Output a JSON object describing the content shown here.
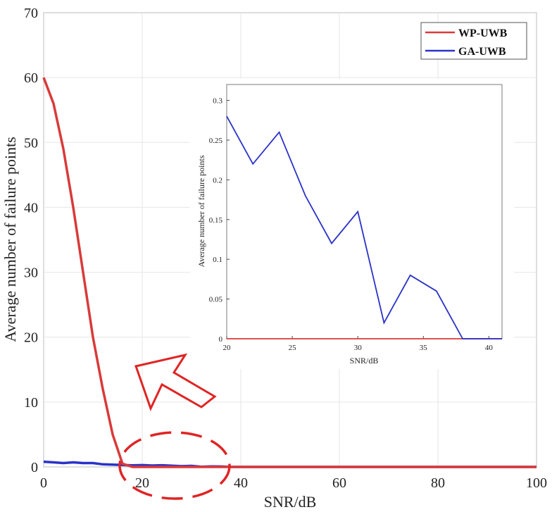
{
  "chart_data": [
    {
      "type": "line",
      "xlabel": "SNR/dB",
      "ylabel": "Average number of failure points",
      "xlim": [
        0,
        100
      ],
      "ylim": [
        0,
        70
      ],
      "xticks": [
        "0",
        "20",
        "40",
        "60",
        "80",
        "100"
      ],
      "yticks": [
        "0",
        "10",
        "20",
        "30",
        "40",
        "50",
        "60",
        "70"
      ],
      "grid": true,
      "legend_position": "top-right",
      "series": [
        {
          "name": "WP-UWB",
          "color": "#d93a3a",
          "x": [
            0,
            2,
            4,
            6,
            8,
            10,
            12,
            14,
            16,
            18,
            20,
            22,
            24,
            26,
            28,
            30,
            32,
            34,
            36,
            38,
            40,
            50,
            60,
            70,
            80,
            90,
            100
          ],
          "y": [
            60,
            56,
            49,
            40,
            30,
            20,
            12,
            5,
            0.5,
            0,
            0,
            0,
            0,
            0,
            0,
            0,
            0,
            0,
            0,
            0,
            0,
            0,
            0,
            0,
            0,
            0,
            0
          ]
        },
        {
          "name": "GA-UWB",
          "color": "#2a32c8",
          "x": [
            0,
            2,
            4,
            6,
            8,
            10,
            12,
            14,
            16,
            18,
            20,
            22,
            24,
            26,
            28,
            30,
            32,
            34,
            36,
            38,
            40,
            50,
            60,
            70,
            80,
            90,
            100
          ],
          "y": [
            0.8,
            0.7,
            0.6,
            0.7,
            0.6,
            0.6,
            0.4,
            0.35,
            0.3,
            0.25,
            0.28,
            0.22,
            0.26,
            0.18,
            0.12,
            0.16,
            0.02,
            0.08,
            0.06,
            0,
            0,
            0,
            0,
            0,
            0,
            0,
            0
          ]
        }
      ]
    },
    {
      "type": "line",
      "xlabel": "SNR/dB",
      "ylabel": "Average number of failure points",
      "xlim": [
        20,
        41
      ],
      "ylim": [
        0,
        0.32
      ],
      "xticks": [
        "20",
        "25",
        "30",
        "35",
        "40"
      ],
      "yticks": [
        "0",
        "0.05",
        "0.1",
        "0.15",
        "0.2",
        "0.25",
        "0.3"
      ],
      "grid": false,
      "series": [
        {
          "name": "WP-UWB",
          "color": "#d93a3a",
          "x": [
            20,
            41
          ],
          "y": [
            0,
            0
          ]
        },
        {
          "name": "GA-UWB",
          "color": "#2a32c8",
          "x": [
            20,
            22,
            24,
            26,
            28,
            30,
            32,
            34,
            36,
            38,
            41
          ],
          "y": [
            0.28,
            0.22,
            0.26,
            0.18,
            0.12,
            0.16,
            0.02,
            0.08,
            0.06,
            0,
            0
          ]
        }
      ]
    }
  ],
  "annotations": {
    "ellipse_color": "#e02424",
    "arrow_color": "#e02424"
  }
}
